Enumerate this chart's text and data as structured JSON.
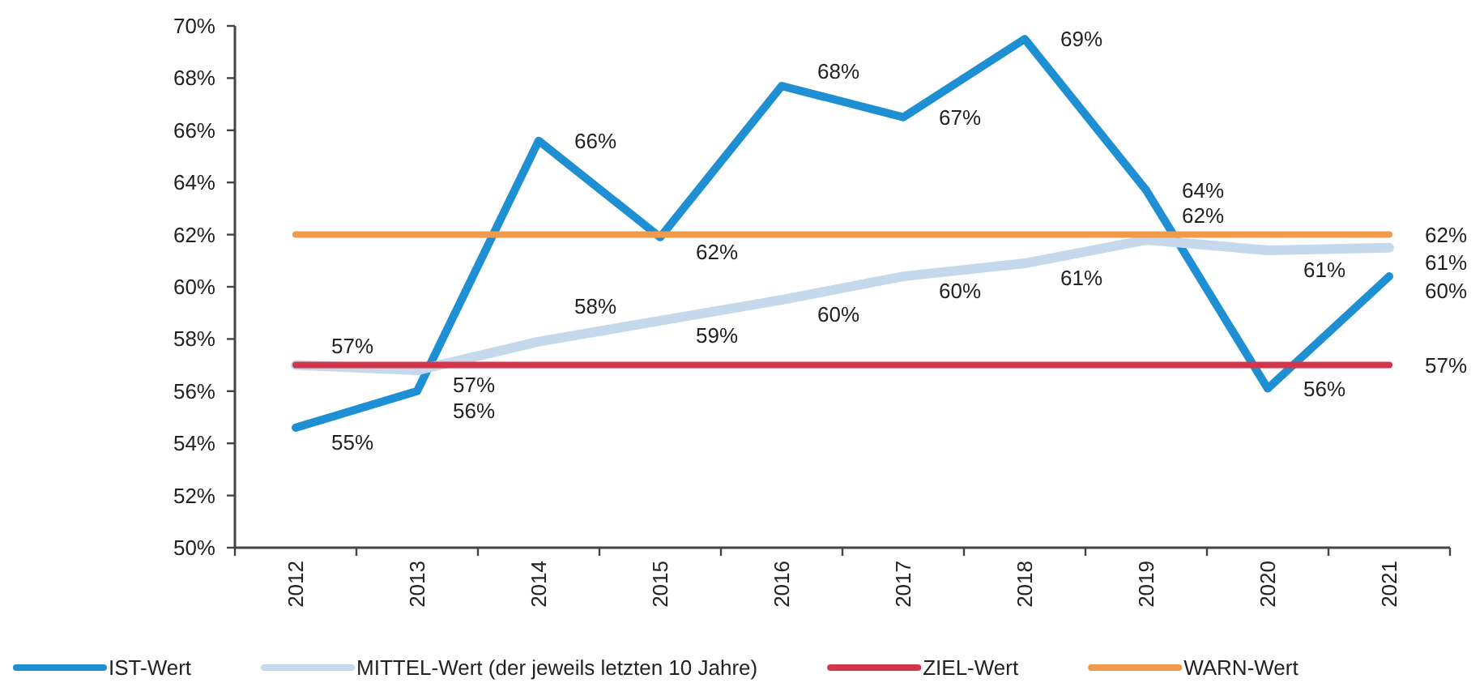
{
  "chart_data": {
    "type": "line",
    "categories": [
      "2012",
      "2013",
      "2014",
      "2015",
      "2016",
      "2017",
      "2018",
      "2019",
      "2020",
      "2021"
    ],
    "series": [
      {
        "name": "IST-Wert",
        "color": "#1e8fd3",
        "values": [
          54.6,
          56.0,
          65.6,
          61.9,
          67.7,
          66.5,
          69.5,
          63.7,
          56.1,
          60.4
        ],
        "value_labels": [
          "55%",
          "56%",
          "66%",
          "62%",
          "68%",
          "67%",
          "69%",
          "64%",
          "56%",
          "60%"
        ]
      },
      {
        "name": "MITTEL-Wert (der jeweils letzten 10 Jahre)",
        "color": "#c6d9ec",
        "values": [
          57.0,
          56.8,
          57.9,
          58.7,
          59.5,
          60.4,
          60.9,
          61.8,
          61.4,
          61.5
        ],
        "value_labels": [
          "57%",
          "57%",
          "58%",
          "59%",
          "60%",
          "60%",
          "61%",
          "62%",
          "61%",
          "61%"
        ]
      },
      {
        "name": "ZIEL-Wert",
        "color": "#d2364b",
        "values": [
          57,
          57,
          57,
          57,
          57,
          57,
          57,
          57,
          57,
          57
        ],
        "value_labels": [
          null,
          null,
          null,
          null,
          null,
          null,
          null,
          null,
          null,
          "57%"
        ]
      },
      {
        "name": "WARN-Wert",
        "color": "#f09a4e",
        "values": [
          62,
          62,
          62,
          62,
          62,
          62,
          62,
          62,
          62,
          62
        ],
        "value_labels": [
          null,
          null,
          null,
          null,
          null,
          null,
          null,
          null,
          null,
          "62%"
        ]
      }
    ],
    "ylim": [
      50,
      70
    ],
    "yticks": [
      {
        "value": 50,
        "label": "50%"
      },
      {
        "value": 52,
        "label": "52%"
      },
      {
        "value": 54,
        "label": "54%"
      },
      {
        "value": 56,
        "label": "56%"
      },
      {
        "value": 58,
        "label": "58%"
      },
      {
        "value": 60,
        "label": "60%"
      },
      {
        "value": 62,
        "label": "62%"
      },
      {
        "value": 64,
        "label": "64%"
      },
      {
        "value": 66,
        "label": "66%"
      },
      {
        "value": 68,
        "label": "68%"
      },
      {
        "value": 70,
        "label": "70%"
      }
    ],
    "legend": "bottom"
  }
}
